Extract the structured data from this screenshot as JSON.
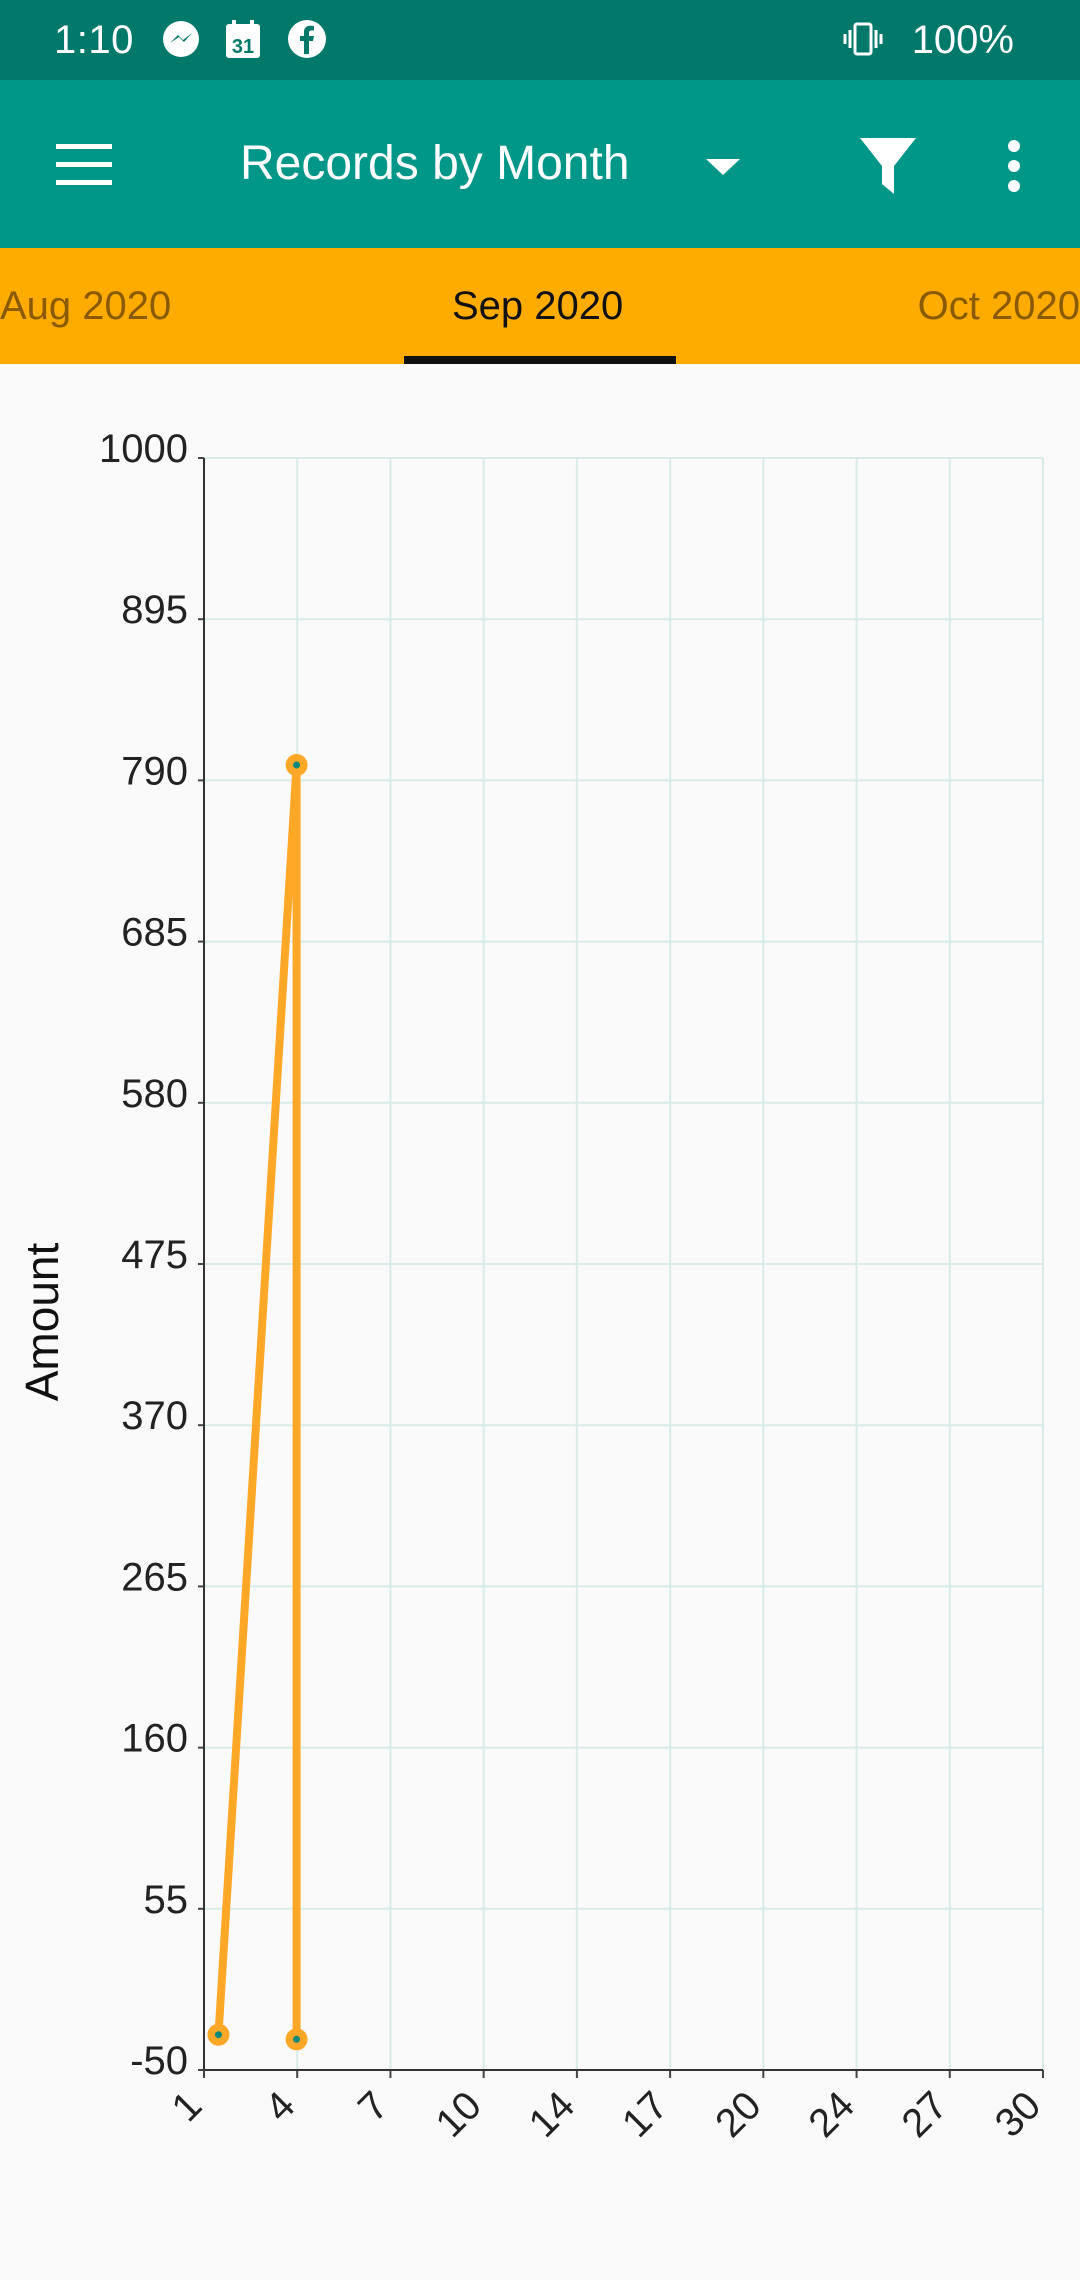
{
  "status_bar": {
    "time": "1:10",
    "icons": [
      "messenger-icon",
      "calendar-icon",
      "facebook-icon",
      "vibrate-icon"
    ],
    "calendar_day": "31",
    "battery": "100%"
  },
  "app_bar": {
    "title": "Records by Month",
    "icons": [
      "menu-icon",
      "dropdown-arrow-icon",
      "filter-icon",
      "more-vert-icon"
    ]
  },
  "tabs": {
    "prev": "Aug 2020",
    "current": "Sep 2020",
    "next": "Oct 2020"
  },
  "colors": {
    "status_bar": "#00796b",
    "app_bar": "#009688",
    "tabs": "#ffab00",
    "series": "#ffa726",
    "grid": "#d7ece8"
  },
  "chart_data": {
    "type": "line",
    "title": "",
    "xlabel": "",
    "ylabel": "Amount",
    "ylim": [
      -50,
      1000
    ],
    "y_ticks": [
      "1000",
      "895",
      "790",
      "685",
      "580",
      "475",
      "370",
      "265",
      "160",
      "55",
      "-50"
    ],
    "xlim": [
      1,
      30
    ],
    "x_ticks": [
      "1",
      "4",
      "7",
      "10",
      "14",
      "17",
      "20",
      "24",
      "27",
      "30"
    ],
    "grid": true,
    "series": [
      {
        "x": [
          1.5,
          4.2,
          4.2
        ],
        "y": [
          -27,
          800,
          -30
        ]
      }
    ]
  }
}
